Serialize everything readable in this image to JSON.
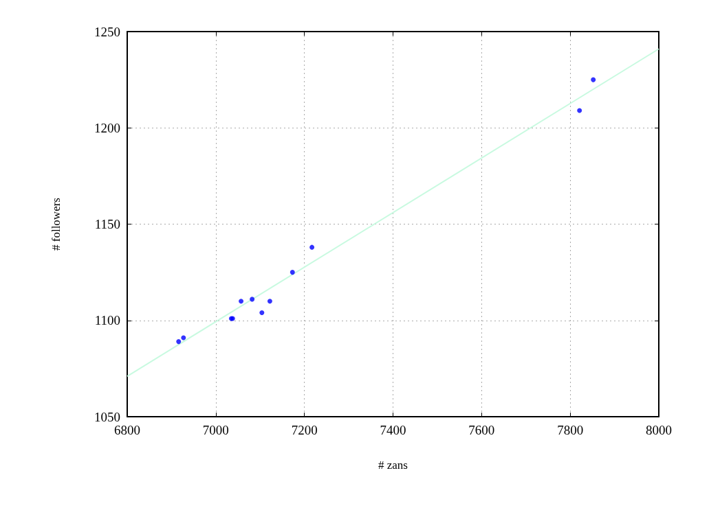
{
  "chart_data": {
    "type": "scatter",
    "xlabel": "# zans",
    "ylabel": "# followers",
    "series": [
      {
        "color": "#0000ff",
        "marker": "circle",
        "x": [
          6916,
          6927,
          7035,
          7038,
          7057,
          7082,
          7104,
          7122,
          7173,
          7217,
          7821,
          7852
        ],
        "values": [
          1089,
          1091,
          1101,
          1101,
          1110,
          1111,
          1104,
          1110,
          1125,
          1138,
          1209,
          1225
        ]
      },
      {
        "type": "line",
        "color": "#c8fae0",
        "marker": "none",
        "line_style": "solid",
        "x": [
          6800,
          8000
        ],
        "values": [
          1071,
          1241
        ]
      }
    ],
    "xlim": [
      6800,
      8000
    ],
    "xticks": [
      6800,
      7000,
      7200,
      7400,
      7600,
      7800,
      8000
    ],
    "ylim": [
      1050,
      1250
    ],
    "yticks": [
      1050,
      1100,
      1150,
      1200,
      1250
    ],
    "grid": true
  }
}
